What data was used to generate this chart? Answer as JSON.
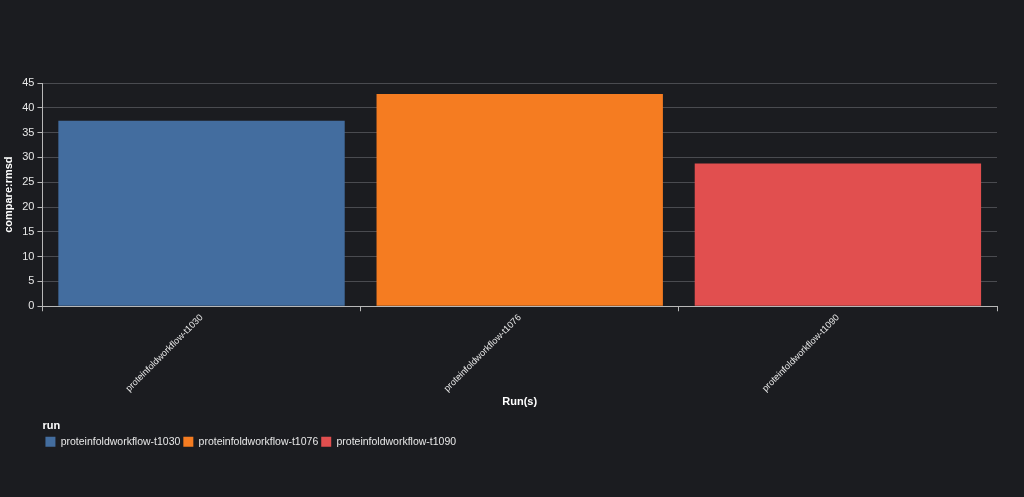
{
  "chart_data": {
    "type": "bar",
    "xlabel": "Run(s)",
    "ylabel": "compare:rmsd",
    "legend_title": "run",
    "categories": [
      "proteinfoldworkflow-t1030",
      "proteinfoldworkflow-t1076",
      "proteinfoldworkflow-t1090"
    ],
    "series": [
      {
        "name": "proteinfoldworkflow-t1030",
        "color": "#436d9f",
        "values": [
          37.4,
          null,
          null
        ]
      },
      {
        "name": "proteinfoldworkflow-t1076",
        "color": "#f57c21",
        "values": [
          null,
          42.8,
          null
        ]
      },
      {
        "name": "proteinfoldworkflow-t1090",
        "color": "#e14f4f",
        "values": [
          null,
          null,
          28.8
        ]
      }
    ],
    "ylim": [
      0,
      45
    ],
    "yticks": [
      0,
      5,
      10,
      15,
      20,
      25,
      30,
      35,
      40,
      45
    ],
    "grid": "y",
    "legend": "bottom left"
  }
}
